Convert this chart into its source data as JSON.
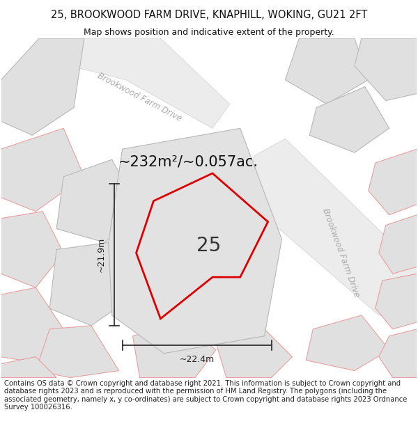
{
  "title": "25, BROOKWOOD FARM DRIVE, KNAPHILL, WOKING, GU21 2FT",
  "subtitle": "Map shows position and indicative extent of the property.",
  "area_text": "~232m²/~0.057ac.",
  "label_25": "25",
  "dim_width": "~22.4m",
  "dim_height": "~21.9m",
  "road_label_top": "Brookwood Farm Drive",
  "road_label_right": "Brookwood Farm Drive",
  "copyright_text": "Contains OS data © Crown copyright and database right 2021. This information is subject to Crown copyright and database rights 2023 and is reproduced with the permission of HM Land Registry. The polygons (including the associated geometry, namely x, y co-ordinates) are subject to Crown copyright and database rights 2023 Ordnance Survey 100026316.",
  "bg_color": "#ffffff",
  "map_bg": "#f8f8f8",
  "plot_fill": "#e2e2e2",
  "plot_edge_red": "#dd0000",
  "gray_plot_fill": "#e0e0e0",
  "gray_plot_edge": "#b8b8b8",
  "pink_edge": "#e8a0a0",
  "road_band_color": "#ececec",
  "road_band_edge": "#d0d0d0",
  "dim_color": "#222222",
  "title_fontsize": 10.5,
  "subtitle_fontsize": 9,
  "area_fontsize": 15,
  "label_fontsize": 20,
  "road_label_fontsize": 8.5,
  "copyright_fontsize": 7.2
}
